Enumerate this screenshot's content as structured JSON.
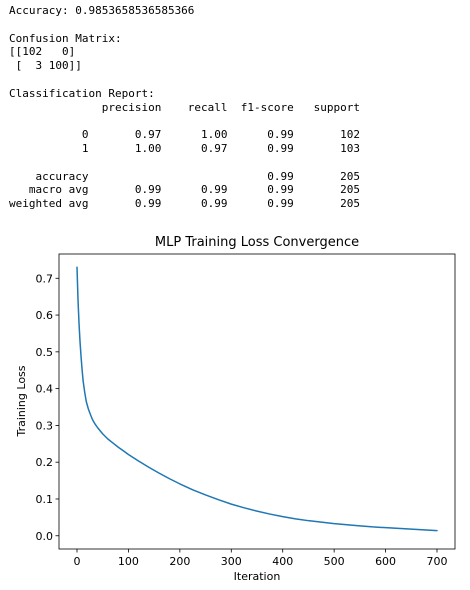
{
  "output": {
    "accuracy_line": "Accuracy: 0.9853658536585366",
    "confusion_title": "Confusion Matrix:",
    "confusion_rows": [
      "[[102   0]",
      " [  3 100]]"
    ],
    "report_title": "Classification Report:",
    "report_header": "              precision    recall  f1-score   support",
    "report_rows": [
      "           0       0.97      1.00      0.99       102",
      "           1       1.00      0.97      0.99       103",
      "    accuracy                           0.99       205",
      "   macro avg       0.99      0.99      0.99       205",
      "weighted avg       0.99      0.99      0.99       205"
    ]
  },
  "chart_data": {
    "type": "line",
    "title": "MLP Training Loss Convergence",
    "xlabel": "Iteration",
    "ylabel": "Training Loss",
    "xlim": [
      -35,
      735
    ],
    "ylim": [
      -0.036,
      0.766
    ],
    "xticks": [
      0,
      100,
      200,
      300,
      400,
      500,
      600,
      700
    ],
    "yticks": [
      0.0,
      0.1,
      0.2,
      0.3,
      0.4,
      0.5,
      0.6,
      0.7
    ],
    "ytick_labels": [
      "0.0",
      "0.1",
      "0.2",
      "0.3",
      "0.4",
      "0.5",
      "0.6",
      "0.7"
    ],
    "grid": false,
    "line_color": "#1f77b4",
    "series": [
      {
        "x": [
          0,
          2,
          4,
          6,
          8,
          10,
          12,
          15,
          18,
          22,
          26,
          30,
          35,
          40,
          50,
          60,
          70,
          80,
          90,
          100,
          120,
          140,
          160,
          180,
          200,
          225,
          250,
          275,
          300,
          325,
          350,
          375,
          400,
          425,
          450,
          475,
          500,
          525,
          550,
          575,
          600,
          625,
          650,
          675,
          700
        ],
        "y": [
          0.73,
          0.64,
          0.575,
          0.525,
          0.485,
          0.45,
          0.42,
          0.39,
          0.365,
          0.345,
          0.33,
          0.316,
          0.304,
          0.294,
          0.277,
          0.263,
          0.252,
          0.241,
          0.231,
          0.221,
          0.203,
          0.186,
          0.17,
          0.155,
          0.141,
          0.125,
          0.111,
          0.098,
          0.086,
          0.076,
          0.067,
          0.059,
          0.052,
          0.046,
          0.041,
          0.037,
          0.033,
          0.03,
          0.027,
          0.024,
          0.022,
          0.02,
          0.018,
          0.016,
          0.014
        ]
      }
    ]
  }
}
